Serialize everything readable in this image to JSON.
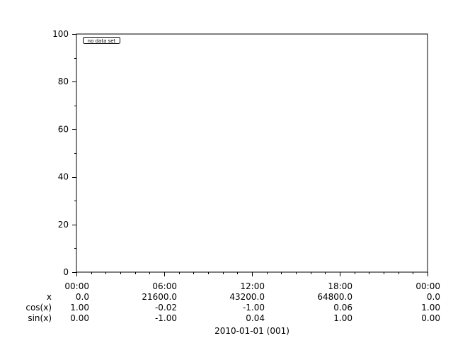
{
  "chart_data": {
    "type": "line",
    "title": "",
    "ylim": [
      0,
      100
    ],
    "y_ticks": [
      "0",
      "20",
      "40",
      "60",
      "80",
      "100"
    ],
    "y_minor_step": 10,
    "x_range_hours": [
      0,
      24
    ],
    "x_minor_step_hours": 1,
    "x_tick_labels": [
      "00:00",
      "06:00",
      "12:00",
      "18:00",
      "00:00"
    ],
    "aux_rows": [
      {
        "name": "x",
        "values": [
          "0.0",
          "21600.0",
          "43200.0",
          "64800.0",
          "0.0"
        ]
      },
      {
        "name": "cos(x)",
        "values": [
          "1.00",
          "-0.02",
          "-1.00",
          "0.06",
          "1.00"
        ]
      },
      {
        "name": "sin(x)",
        "values": [
          "0.00",
          "-1.00",
          "0.04",
          "1.00",
          "0.00"
        ]
      }
    ],
    "xlabel": "2010-01-01 (001)",
    "series": [],
    "annotation": "no data set",
    "grid": false
  }
}
